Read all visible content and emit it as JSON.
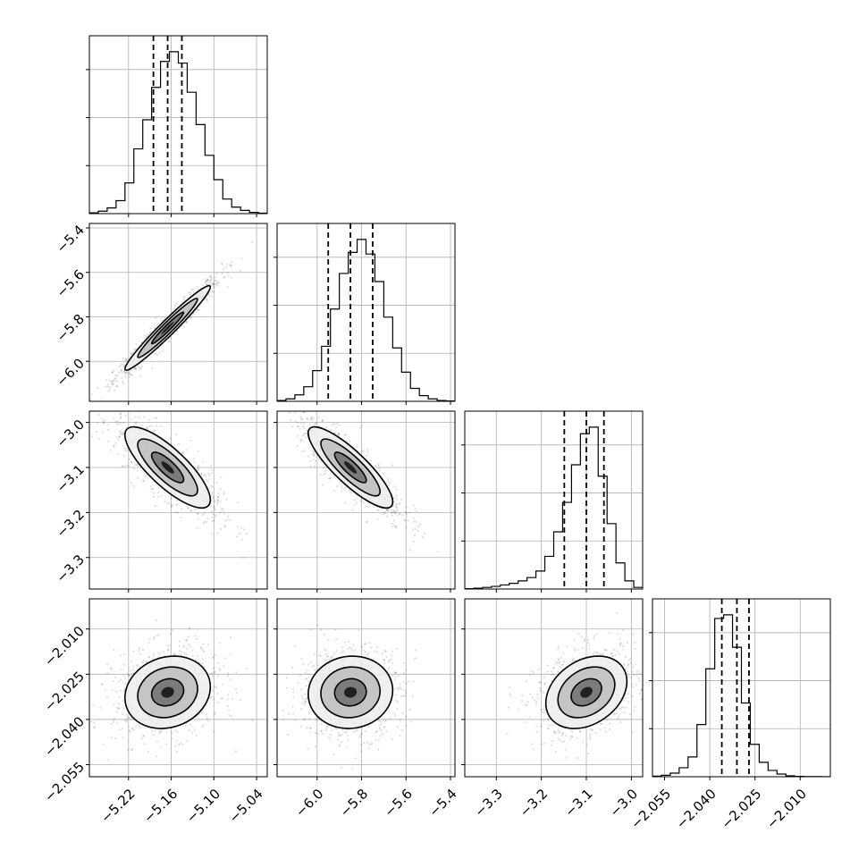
{
  "chart_data": {
    "type": "corner",
    "parameters": [
      "",
      "",
      "",
      ""
    ],
    "grid": true,
    "axes": [
      {
        "range": [
          -5.275,
          -5.025
        ],
        "ticks": [
          -5.22,
          -5.16,
          -5.1,
          -5.04
        ],
        "tick_labels": [
          "−5.22",
          "−5.16",
          "−5.10",
          "−5.04"
        ]
      },
      {
        "range": [
          -6.18,
          -5.38
        ],
        "ticks": [
          -6.0,
          -5.8,
          -5.6,
          -5.4
        ],
        "tick_labels": [
          "−6.0",
          "−5.8",
          "−5.6",
          "−5.4"
        ]
      },
      {
        "range": [
          -3.37,
          -2.975
        ],
        "ticks": [
          -3.0,
          -3.1,
          -3.2,
          -3.3
        ],
        "tick_labels": [
          "−3.0",
          "−3.1",
          "−3.2",
          "−3.3"
        ]
      },
      {
        "range": [
          -2.059,
          -2.0
        ],
        "ticks": [
          -2.055,
          -2.04,
          -2.025,
          -2.01
        ],
        "tick_labels": [
          "−2.055",
          "−2.040",
          "−2.025",
          "−2.010"
        ]
      }
    ],
    "quantiles": [
      [
        -5.185,
        -5.165,
        -5.145
      ],
      [
        -5.95,
        -5.85,
        -5.75
      ],
      [
        -3.149,
        -3.1,
        -3.061
      ],
      [
        -2.036,
        -2.031,
        -2.027
      ]
    ],
    "histograms": [
      {
        "bins": [
          -5.275,
          -5.025
        ],
        "counts": [
          0.005,
          0.015,
          0.035,
          0.08,
          0.19,
          0.4,
          0.58,
          0.78,
          0.94,
          1.0,
          0.93,
          0.75,
          0.55,
          0.36,
          0.21,
          0.09,
          0.04,
          0.02,
          0.008,
          0.003
        ]
      },
      {
        "bins": [
          -6.18,
          -5.38
        ],
        "counts": [
          0.005,
          0.015,
          0.04,
          0.09,
          0.19,
          0.34,
          0.57,
          0.79,
          0.92,
          1.0,
          0.91,
          0.74,
          0.52,
          0.33,
          0.18,
          0.08,
          0.035,
          0.015,
          0.005,
          0.002
        ]
      },
      {
        "bins": [
          -3.37,
          -2.975
        ],
        "counts": [
          0.002,
          0.005,
          0.01,
          0.016,
          0.025,
          0.035,
          0.05,
          0.07,
          0.11,
          0.2,
          0.35,
          0.53,
          0.76,
          0.95,
          0.99,
          0.69,
          0.4,
          0.16,
          0.05,
          0.01
        ]
      },
      {
        "bins": [
          -2.059,
          -2.0
        ],
        "counts": [
          0.003,
          0.008,
          0.02,
          0.05,
          0.11,
          0.29,
          0.6,
          0.88,
          0.9,
          0.72,
          0.41,
          0.18,
          0.08,
          0.035,
          0.015,
          0.005,
          0.002,
          0.001,
          0.0005,
          0.0002
        ]
      }
    ],
    "correlations": {
      "1-0": 0.97,
      "2-0": -0.8,
      "2-1": -0.85,
      "3-0": 0.15,
      "3-1": 0.05,
      "3-2": 0.3
    },
    "stds": [
      0.03,
      0.095,
      0.045,
      0.006
    ],
    "means": [
      -5.165,
      -5.85,
      -3.1,
      -2.031
    ]
  }
}
